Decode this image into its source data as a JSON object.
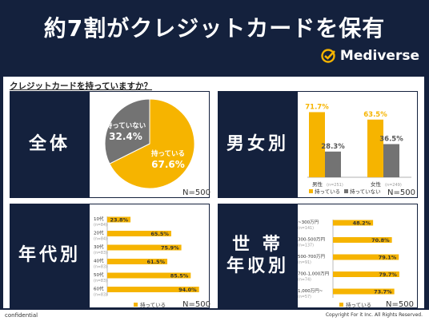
{
  "header": {
    "title": "約7割がクレジットカードを保有",
    "brand": "Mediverse"
  },
  "question": "クレジットカードを持っていますか？",
  "footer": {
    "left": "confidential",
    "right": "Copyright For it Inc. All Rights Reserved."
  },
  "colors": {
    "navy": "#14213d",
    "yellow": "#f6b400",
    "gray": "#737373"
  },
  "chart_data": [
    {
      "type": "pie",
      "label": "全体",
      "n": "N=500",
      "slices": [
        {
          "name": "持っている",
          "value": 67.6,
          "display": "67.6%",
          "color": "#f6b400"
        },
        {
          "name": "持っていない",
          "value": 32.4,
          "display": "32.4%",
          "color": "#737373"
        }
      ]
    },
    {
      "type": "bar",
      "label": "男女別",
      "n": "N=500",
      "categories": [
        {
          "name": "男性",
          "sub": "(n=251)"
        },
        {
          "name": "女性",
          "sub": "(n=249)"
        }
      ],
      "series": [
        {
          "name": "持っている",
          "values": [
            71.7,
            63.5
          ],
          "color": "#f6b400"
        },
        {
          "name": "持っていない",
          "values": [
            28.3,
            36.5
          ],
          "color": "#737373"
        }
      ],
      "ylim": [
        0,
        80
      ]
    },
    {
      "type": "bar",
      "orientation": "horizontal",
      "label": "年代別",
      "n": "N=500",
      "legend": "持っている",
      "categories": [
        {
          "name": "10代",
          "sub": "(n=84)"
        },
        {
          "name": "20代",
          "sub": "(n=84)"
        },
        {
          "name": "30代",
          "sub": "(n=83)"
        },
        {
          "name": "40代",
          "sub": "(n=83)"
        },
        {
          "name": "50代",
          "sub": "(n=83)"
        },
        {
          "name": "60代",
          "sub": "(n=83)"
        }
      ],
      "values": [
        23.8,
        65.5,
        75.9,
        61.5,
        85.5,
        94.0
      ],
      "xlim": [
        0,
        100
      ]
    },
    {
      "type": "bar",
      "orientation": "horizontal",
      "label": "世帯年収別",
      "label_lines": [
        "世 帯",
        "年収別"
      ],
      "n": "N=500",
      "legend": "持っている",
      "categories": [
        {
          "name": "~300万円",
          "sub": "(n=141)"
        },
        {
          "name": "300-500万円",
          "sub": "(n=137)"
        },
        {
          "name": "500-700万円",
          "sub": "(n=91)"
        },
        {
          "name": "700-1,000万円",
          "sub": "(n=74)"
        },
        {
          "name": "1,000万円~",
          "sub": "(n=57)"
        }
      ],
      "values": [
        48.2,
        70.8,
        79.1,
        79.7,
        73.7
      ],
      "xlim": [
        0,
        100
      ]
    }
  ]
}
